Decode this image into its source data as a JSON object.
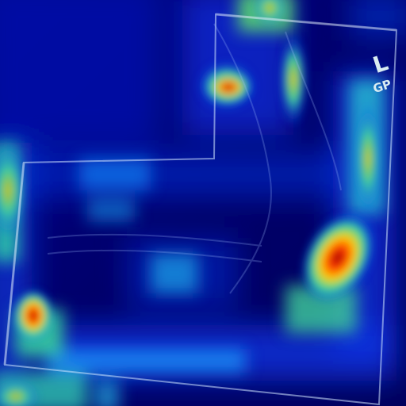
{
  "image": {
    "kind": "radiograph-heatmap-overlay",
    "colormap": [
      "#00007a",
      "#0033ff",
      "#00c8ff",
      "#32d9a0",
      "#ffd400",
      "#ff4000",
      "#8b0000"
    ]
  },
  "overlay": {
    "side_marker": "L",
    "code_marker": "GP"
  }
}
